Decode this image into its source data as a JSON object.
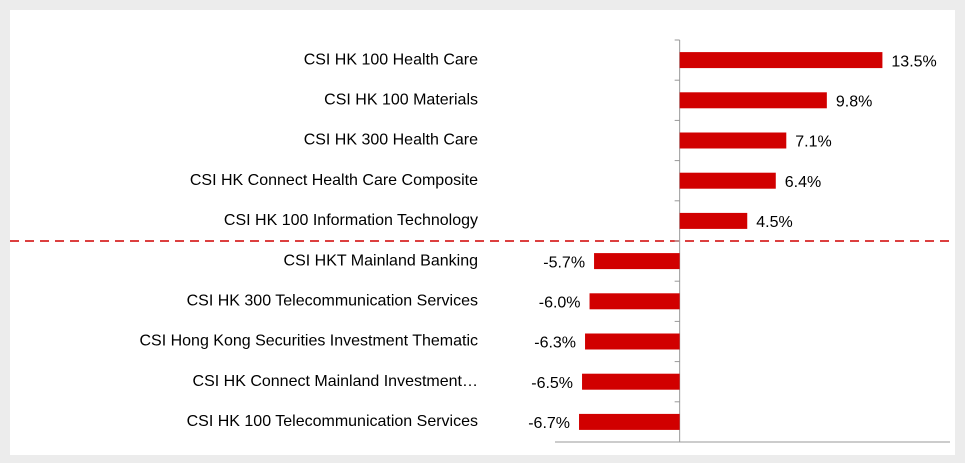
{
  "chart_data": {
    "type": "bar",
    "orientation": "horizontal",
    "categories": [
      "CSI HK 100 Health Care",
      "CSI HK 100 Materials",
      "CSI HK 300 Health Care",
      "CSI HK Connect Health Care Composite",
      "CSI HK 100 Information Technology",
      "CSI HKT Mainland Banking",
      "CSI HK 300 Telecommunication Services",
      "CSI Hong Kong Securities Investment Thematic",
      "CSI HK Connect Mainland Investment…",
      "CSI HK 100 Telecommunication Services"
    ],
    "values": [
      13.5,
      9.8,
      7.1,
      6.4,
      4.5,
      -5.7,
      -6.0,
      -6.3,
      -6.5,
      -6.7
    ],
    "value_labels": [
      "13.5%",
      "9.8%",
      "7.1%",
      "6.4%",
      "4.5%",
      "-5.7%",
      "-6.0%",
      "-6.3%",
      "-6.5%",
      "-6.7%"
    ],
    "color": "#d10000",
    "xlim": [
      -8.3,
      18
    ]
  }
}
